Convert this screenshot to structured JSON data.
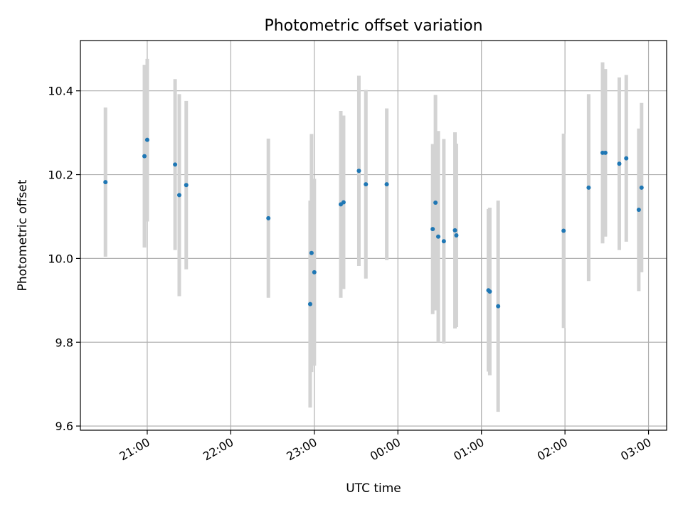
{
  "chart_data": {
    "type": "scatter",
    "title": "Photometric offset variation",
    "xlabel": "UTC time",
    "ylabel": "Photometric offset",
    "x_unit": "UTC time of night (20:00 on day 1 through 03:00 on day 2)",
    "xlim": [
      "20:12",
      "03:13"
    ],
    "ylim": [
      9.59,
      10.52
    ],
    "x_ticks": [
      "21:00",
      "22:00",
      "23:00",
      "00:00",
      "01:00",
      "02:00",
      "03:00"
    ],
    "y_ticks": [
      9.6,
      9.8,
      10.0,
      10.2,
      10.4
    ],
    "y_tick_labels": [
      "9.6",
      "9.8",
      "10.0",
      "10.2",
      "10.4"
    ],
    "grid": true,
    "point_color": "#1f77b4",
    "errorbar_color": "#d3d3d3",
    "points": [
      {
        "t": "20:30",
        "y": 10.182,
        "lo": 10.004,
        "hi": 10.36
      },
      {
        "t": "20:58",
        "y": 10.244,
        "lo": 10.026,
        "hi": 10.462
      },
      {
        "t": "21:00",
        "y": 10.283,
        "lo": 10.088,
        "hi": 10.476
      },
      {
        "t": "21:20",
        "y": 10.224,
        "lo": 10.02,
        "hi": 10.428
      },
      {
        "t": "21:23",
        "y": 10.151,
        "lo": 9.91,
        "hi": 10.392
      },
      {
        "t": "21:28",
        "y": 10.175,
        "lo": 9.974,
        "hi": 10.376
      },
      {
        "t": "22:27",
        "y": 10.096,
        "lo": 9.906,
        "hi": 10.286
      },
      {
        "t": "22:57",
        "y": 9.891,
        "lo": 9.644,
        "hi": 10.138
      },
      {
        "t": "22:58",
        "y": 10.013,
        "lo": 9.729,
        "hi": 10.297
      },
      {
        "t": "23:00",
        "y": 9.967,
        "lo": 9.744,
        "hi": 10.19
      },
      {
        "t": "23:19",
        "y": 10.129,
        "lo": 9.906,
        "hi": 10.352
      },
      {
        "t": "23:21",
        "y": 10.134,
        "lo": 9.927,
        "hi": 10.341
      },
      {
        "t": "23:32",
        "y": 10.209,
        "lo": 9.982,
        "hi": 10.436
      },
      {
        "t": "23:37",
        "y": 10.177,
        "lo": 9.952,
        "hi": 10.402
      },
      {
        "t": "23:52",
        "y": 10.177,
        "lo": 9.996,
        "hi": 10.358
      },
      {
        "t": "00:25",
        "y": 10.07,
        "lo": 9.867,
        "hi": 10.273
      },
      {
        "t": "00:27",
        "y": 10.133,
        "lo": 9.876,
        "hi": 10.39
      },
      {
        "t": "00:29",
        "y": 10.052,
        "lo": 9.8,
        "hi": 10.304
      },
      {
        "t": "00:33",
        "y": 10.041,
        "lo": 9.797,
        "hi": 10.285
      },
      {
        "t": "00:41",
        "y": 10.067,
        "lo": 9.833,
        "hi": 10.301
      },
      {
        "t": "00:42",
        "y": 10.055,
        "lo": 9.836,
        "hi": 10.274
      },
      {
        "t": "01:05",
        "y": 9.924,
        "lo": 9.73,
        "hi": 10.118
      },
      {
        "t": "01:06",
        "y": 9.921,
        "lo": 9.721,
        "hi": 10.121
      },
      {
        "t": "01:12",
        "y": 9.886,
        "lo": 9.634,
        "hi": 10.138
      },
      {
        "t": "01:59",
        "y": 10.066,
        "lo": 9.834,
        "hi": 10.298
      },
      {
        "t": "02:17",
        "y": 10.169,
        "lo": 9.946,
        "hi": 10.392
      },
      {
        "t": "02:27",
        "y": 10.252,
        "lo": 10.036,
        "hi": 10.468
      },
      {
        "t": "02:29",
        "y": 10.252,
        "lo": 10.052,
        "hi": 10.452
      },
      {
        "t": "02:39",
        "y": 10.226,
        "lo": 10.02,
        "hi": 10.432
      },
      {
        "t": "02:44",
        "y": 10.239,
        "lo": 10.04,
        "hi": 10.438
      },
      {
        "t": "02:53",
        "y": 10.116,
        "lo": 9.922,
        "hi": 10.31
      },
      {
        "t": "02:55",
        "y": 10.169,
        "lo": 9.967,
        "hi": 10.371
      }
    ]
  }
}
